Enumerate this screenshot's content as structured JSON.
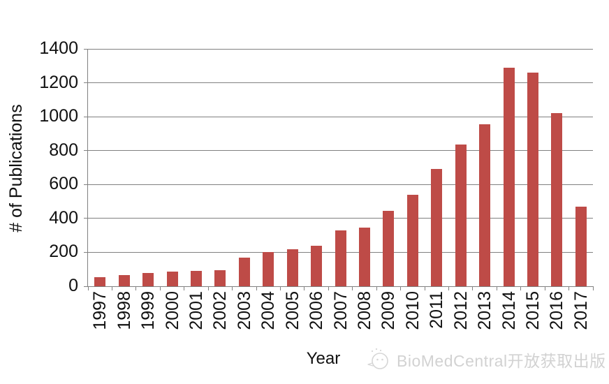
{
  "chart_data": {
    "type": "bar",
    "title": "",
    "xlabel": "Year",
    "ylabel": "# of Publications",
    "categories": [
      "1997",
      "1998",
      "1999",
      "2000",
      "2001",
      "2002",
      "2003",
      "2004",
      "2005",
      "2006",
      "2007",
      "2008",
      "2009",
      "2010",
      "2011",
      "2012",
      "2013",
      "2014",
      "2015",
      "2016",
      "2017"
    ],
    "values": [
      55,
      65,
      80,
      85,
      90,
      95,
      170,
      200,
      220,
      240,
      330,
      345,
      445,
      540,
      690,
      835,
      955,
      1290,
      1260,
      1020,
      470
    ],
    "ylim": [
      0,
      1400
    ],
    "ytick_step": 200,
    "yticks": [
      "0",
      "200",
      "400",
      "600",
      "800",
      "1000",
      "1200",
      "1400"
    ],
    "grid": true,
    "legend": false,
    "bar_color": "#BE4B47",
    "axis_color": "#808080",
    "text_color": "#111111"
  },
  "watermark": {
    "text": "BioMedCentral开放获取出版",
    "icon": "wechat-smiley-icon",
    "color": "#d2d2d2"
  }
}
